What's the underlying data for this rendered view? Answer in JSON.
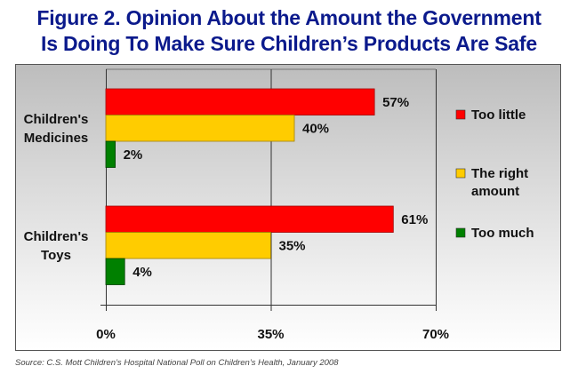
{
  "title": {
    "line1": "Figure 2. Opinion About the Amount the Government",
    "line2": "Is Doing To Make Sure Children’s Products Are Safe"
  },
  "source": "Source: C.S. Mott Children’s Hospital National Poll on Children’s Health, January 2008",
  "chart_data": {
    "type": "bar",
    "orientation": "horizontal",
    "title": "Figure 2. Opinion About the Amount the Government Is Doing To Make Sure Children’s Products Are Safe",
    "categories": [
      {
        "lines": [
          "Children's",
          "Medicines"
        ]
      },
      {
        "lines": [
          "Children's",
          "Toys"
        ]
      }
    ],
    "series": [
      {
        "name": "Too little",
        "legend_lines": [
          "Too little"
        ],
        "color": "#ff0000",
        "values": [
          57,
          61
        ]
      },
      {
        "name": "The right amount",
        "legend_lines": [
          "The right",
          "amount"
        ],
        "color": "#ffcc00",
        "values": [
          40,
          35
        ]
      },
      {
        "name": "Too much",
        "legend_lines": [
          "Too much"
        ],
        "color": "#008000",
        "values": [
          2,
          4
        ]
      }
    ],
    "value_suffix": "%",
    "xlim": [
      0,
      70
    ],
    "xticks": [
      0,
      35,
      70
    ],
    "xtick_labels": [
      "0%",
      "35%",
      "70%"
    ],
    "grid": "vertical",
    "legend": "right",
    "xlabel": "",
    "ylabel": ""
  }
}
